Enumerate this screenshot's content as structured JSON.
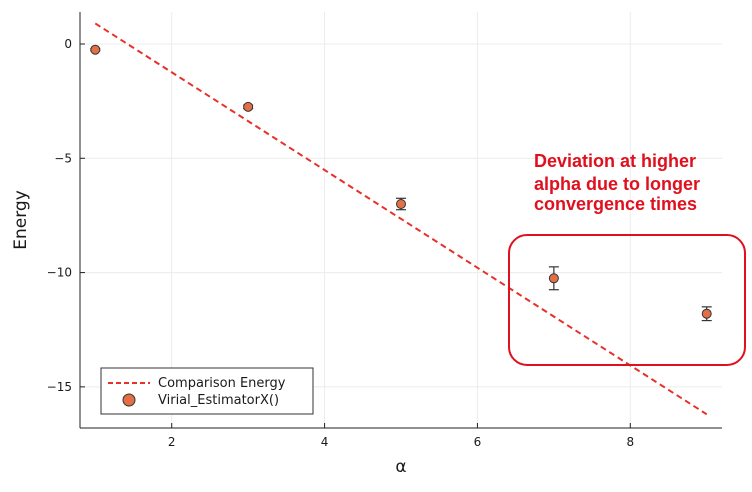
{
  "chart_data": {
    "type": "scatter",
    "xlabel": "α",
    "ylabel": "Energy",
    "xlim": [
      0.8,
      9.2
    ],
    "ylim": [
      -16.8,
      1.4
    ],
    "xticks": [
      2,
      4,
      6,
      8
    ],
    "yticks": [
      0,
      -5,
      -10,
      -15
    ],
    "xtick_labels": [
      "2",
      "4",
      "6",
      "8"
    ],
    "ytick_labels": [
      "0",
      "−5",
      "−10",
      "−15"
    ],
    "grid": true,
    "legend_position": "bottom-left",
    "series": [
      {
        "name": "Comparison Energy",
        "kind": "dashed-line",
        "color": "#e8302a",
        "x": [
          1,
          9
        ],
        "y": [
          0.9,
          -16.2
        ]
      },
      {
        "name": "Virial_EstimatorX()",
        "kind": "points-with-error-bars",
        "color": "#e26f46",
        "x": [
          1,
          3,
          5,
          7,
          9
        ],
        "y": [
          -0.25,
          -2.75,
          -7.0,
          -10.25,
          -11.8
        ],
        "err": [
          0.05,
          0.08,
          0.25,
          0.5,
          0.3
        ]
      }
    ],
    "annotations": [
      {
        "lines": [
          "Deviation at higher",
          "alpha due to longer",
          "convergence times"
        ],
        "color": "#e0101e",
        "box_color": "#e0101e"
      }
    ]
  }
}
